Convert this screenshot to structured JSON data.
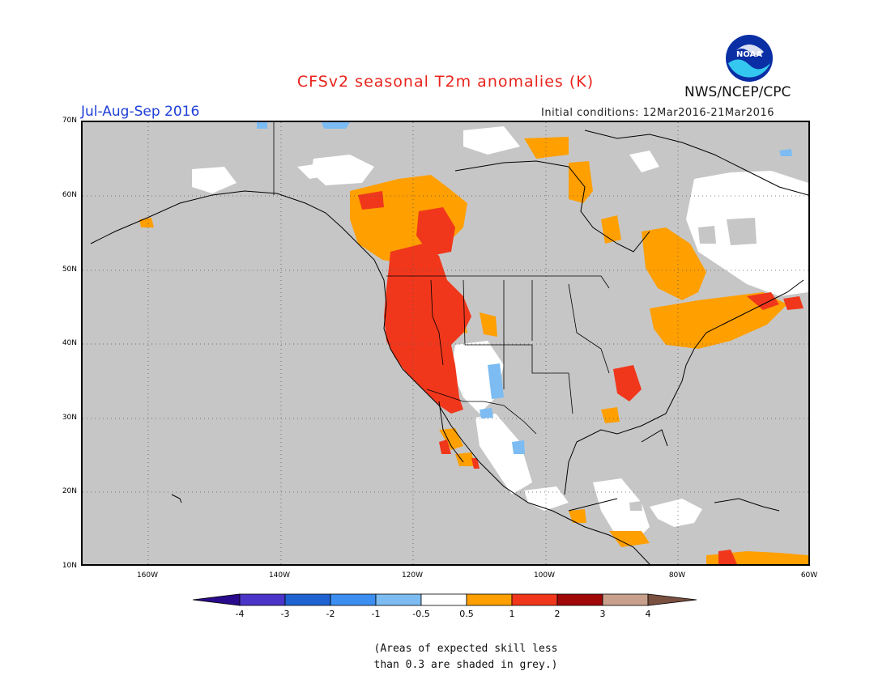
{
  "header": {
    "title": "CFSv2 seasonal T2m anomalies (K)",
    "period": "Jul-Aug-Sep 2016",
    "initial_conditions": "Initial conditions: 12Mar2016-21Mar2016",
    "agency": "NWS/NCEP/CPC",
    "logo_text": "NOAA"
  },
  "map": {
    "lat_labels": [
      "70N",
      "60N",
      "50N",
      "40N",
      "30N",
      "20N",
      "10N"
    ],
    "lon_labels": [
      "160W",
      "140W",
      "120W",
      "100W",
      "80W",
      "60W"
    ],
    "background_color": "#c6c6c6"
  },
  "colorbar": {
    "tick_labels": [
      "-4",
      "-3",
      "-2",
      "-1",
      "-0.5",
      "0.5",
      "1",
      "2",
      "3",
      "4"
    ],
    "colors": [
      "#2a0a8c",
      "#4a35c8",
      "#1f63d2",
      "#3c8ef0",
      "#7cbcf2",
      "#ffffff",
      "#ff9f00",
      "#f0371c",
      "#a00808",
      "#c8a08c",
      "#7a5040"
    ]
  },
  "footnote": {
    "line1": "(Areas of expected skill less",
    "line2": "than 0.3 are shaded in grey.)"
  }
}
